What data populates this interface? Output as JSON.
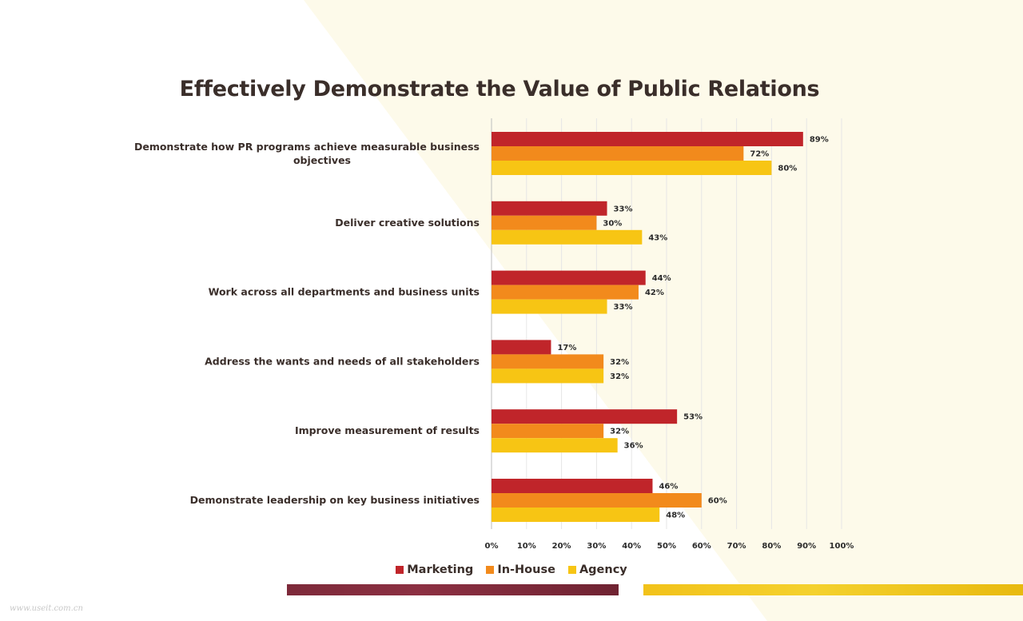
{
  "title": "Effectively Demonstrate the Value of Public Relations",
  "watermark": "www.useit.com.cn",
  "colors": {
    "marketing": "#c0252a",
    "inhouse": "#f28a1c",
    "agency": "#f7c514",
    "background_tint": "#fdfaea",
    "title_text": "#3a2e2a"
  },
  "chart_data": {
    "type": "bar",
    "orientation": "horizontal",
    "title": "Effectively Demonstrate the Value of Public Relations",
    "categories": [
      "Demonstrate  how PR programs achieve measurable business objectives",
      "Deliver creative solutions",
      "Work across all departments and business  units",
      "Address  the wants and needs of all stakeholders",
      "Improve measurement of results",
      "Demonstrate  leadership on key business initiatives"
    ],
    "series": [
      {
        "name": "Marketing",
        "values": [
          89,
          33,
          44,
          17,
          53,
          46
        ]
      },
      {
        "name": "In-House",
        "values": [
          72,
          30,
          42,
          32,
          32,
          60
        ]
      },
      {
        "name": "Agency",
        "values": [
          80,
          43,
          33,
          32,
          36,
          48
        ]
      }
    ],
    "xlim": [
      0,
      100
    ],
    "xticks": [
      "0%",
      "10%",
      "20%",
      "30%",
      "40%",
      "50%",
      "60%",
      "70%",
      "80%",
      "90%",
      "100%"
    ],
    "value_suffix": "%",
    "grid": true,
    "legend": "bottom"
  }
}
